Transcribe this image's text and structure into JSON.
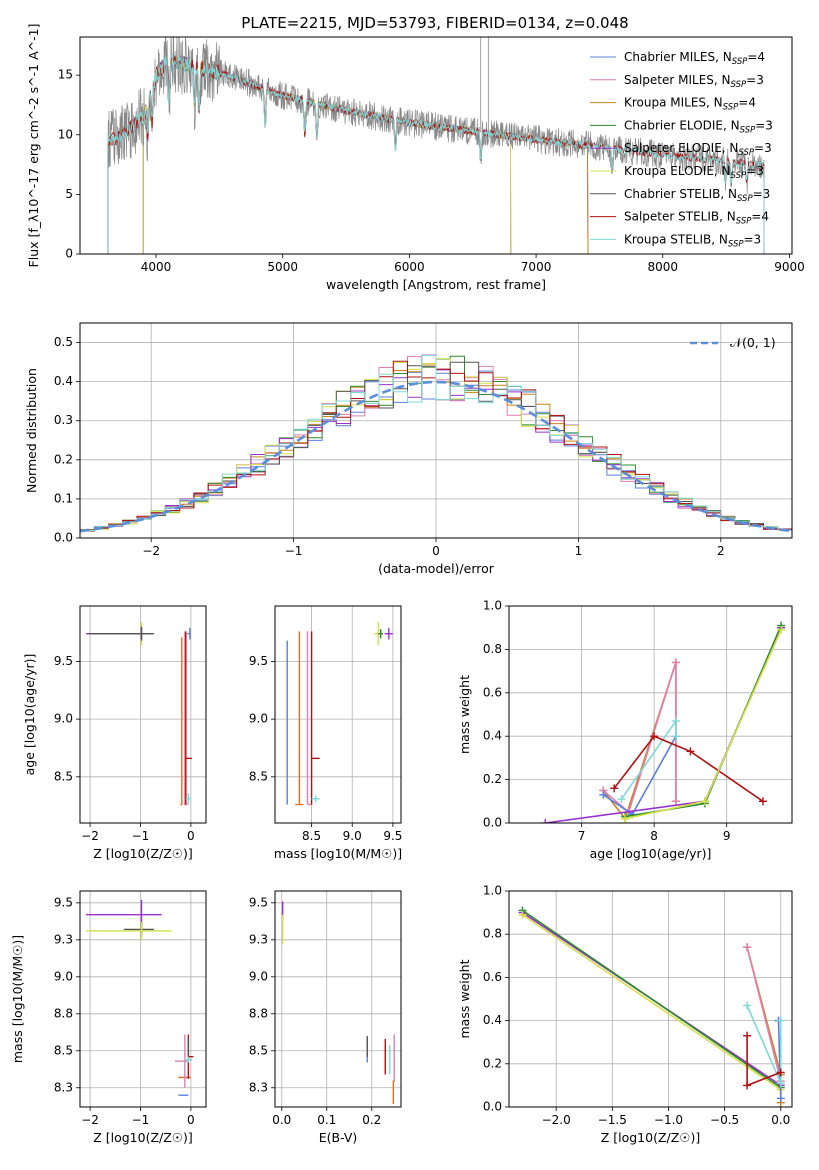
{
  "title": "PLATE=2215, MJD=53793, FIBERID=0134, z=0.048",
  "colors": {
    "Chabrier MILES": "#5b7fdb",
    "Salpeter MILES": "#e07fb0",
    "Kroupa MILES": "#c8821e",
    "Chabrier ELODIE": "#2e8b2e",
    "Salpeter ELODIE": "#9932cc",
    "Kroupa ELODIE": "#d4e04a",
    "Chabrier STELIB": "#555555",
    "Salpeter STELIB": "#b01010",
    "Kroupa STELIB": "#7fd8d8",
    "orange": "#e07020",
    "gaussian": "#5b8fdb"
  },
  "chart_data": [
    {
      "id": "spectrum",
      "type": "line",
      "xlabel": "wavelength [Angstrom, rest frame]",
      "ylabel": "Flux [f_λ10^-17 erg cm^-2 s^-1 A^-1]",
      "xlim": [
        3400,
        9020
      ],
      "ylim": [
        0,
        18.2
      ],
      "xticks": [
        4000,
        5000,
        6000,
        7000,
        8000,
        9000
      ],
      "yticks": [
        0,
        5,
        10,
        15
      ],
      "legend_placement": "top-right",
      "series": [
        {
          "name": "Chabrier MILES",
          "nssp": "4",
          "range": [
            3620,
            7410
          ]
        },
        {
          "name": "Salpeter MILES",
          "nssp": "3",
          "range": [
            3620,
            7410
          ]
        },
        {
          "name": "Kroupa MILES",
          "nssp": "4",
          "range": [
            3620,
            7410
          ]
        },
        {
          "name": "Chabrier ELODIE",
          "nssp": "3",
          "range": [
            3900,
            6800
          ]
        },
        {
          "name": "Salpeter ELODIE",
          "nssp": "3",
          "range": [
            3900,
            6800
          ]
        },
        {
          "name": "Kroupa ELODIE",
          "nssp": "3",
          "range": [
            3900,
            6800
          ]
        },
        {
          "name": "Chabrier STELIB",
          "nssp": "3",
          "range": [
            3620,
            8800
          ]
        },
        {
          "name": "Salpeter STELIB",
          "nssp": "4",
          "range": [
            3620,
            8800
          ]
        },
        {
          "name": "Kroupa STELIB",
          "nssp": "3",
          "range": [
            3620,
            8800
          ]
        }
      ],
      "continuum": {
        "x": [
          3620,
          3700,
          3800,
          3900,
          4000,
          4100,
          4200,
          4500,
          5000,
          5500,
          6000,
          6500,
          7000,
          7500,
          8000,
          8500,
          8800
        ],
        "y": [
          9.5,
          9.8,
          10.5,
          11.5,
          15.0,
          16.3,
          16.0,
          15.2,
          13.3,
          12.0,
          11.0,
          10.3,
          9.6,
          9.0,
          8.3,
          7.8,
          7.4
        ]
      },
      "absorption_lines": [
        3934,
        3969,
        4102,
        4304,
        4340,
        4861,
        5175,
        5270,
        5890,
        6563,
        7600,
        8498,
        8542,
        8662
      ]
    },
    {
      "id": "residuals",
      "type": "line",
      "xlabel": "(data-model)/error",
      "ylabel": "Normed distribution",
      "xlim": [
        -2.5,
        2.5
      ],
      "ylim": [
        0,
        0.55
      ],
      "xticks": [
        -2,
        -1,
        0,
        1,
        2
      ],
      "yticks": [
        0.0,
        0.1,
        0.2,
        0.3,
        0.4,
        0.5
      ],
      "legend_placement": "top-right",
      "gaussian_label": "𝒩(0, 1)",
      "series": [
        {
          "name": "Chabrier MILES"
        },
        {
          "name": "Salpeter MILES"
        },
        {
          "name": "Kroupa MILES"
        },
        {
          "name": "Chabrier ELODIE"
        },
        {
          "name": "Salpeter ELODIE"
        },
        {
          "name": "Kroupa ELODIE"
        },
        {
          "name": "Chabrier STELIB"
        },
        {
          "name": "Salpeter STELIB"
        },
        {
          "name": "Kroupa STELIB"
        }
      ]
    },
    {
      "id": "age-vs-Z",
      "type": "scatter",
      "xlabel": "Z [log10(Z/Z☉)]",
      "ylabel": "age [log10(age/yr)]",
      "xlim": [
        -2.2,
        0.3
      ],
      "ylim": [
        8.1,
        9.98
      ],
      "xticks": [
        -2,
        -1,
        0
      ],
      "yticks": [
        8.5,
        9.0,
        9.5
      ],
      "errorbars": [
        {
          "color": "Kroupa ELODIE",
          "x": -0.98,
          "y": 9.74,
          "xerr": [
            1.1,
            0.0
          ],
          "yerr": 0.1
        },
        {
          "color": "Salpeter ELODIE",
          "x": -0.98,
          "y": 9.74,
          "xerr": [
            1.1,
            0.2
          ],
          "yerr": 0.05
        },
        {
          "color": "Chabrier STELIB",
          "x": -0.98,
          "y": 9.74,
          "xerr": [
            1.05,
            0.25
          ],
          "yerr": 0.06
        },
        {
          "color": "Chabrier MILES",
          "x": -0.02,
          "y": 9.74,
          "xerr": [
            0.05,
            0.0
          ],
          "yerr": 0.05
        },
        {
          "color": "orange",
          "x": -0.18,
          "y": 8.26,
          "xerr": [
            0.03,
            0.0
          ],
          "yerr": [
            0,
            1.45
          ]
        },
        {
          "color": "Salpeter MILES",
          "x": -0.12,
          "y": 8.26,
          "xerr": [
            0.02,
            0.05
          ],
          "yerr": [
            0,
            1.5
          ]
        },
        {
          "color": "Salpeter STELIB",
          "x": -0.1,
          "y": 8.66,
          "xerr": [
            0.0,
            0.12
          ],
          "yerr": [
            0.4,
            1.1
          ]
        },
        {
          "color": "Kroupa STELIB",
          "x": -0.05,
          "y": 8.31,
          "xerr": [
            0.05,
            0.05
          ],
          "yerr": 0.05
        }
      ]
    },
    {
      "id": "age-vs-mass",
      "type": "scatter",
      "xlabel": "mass [log10(M/M☉)]",
      "ylabel": "",
      "xlim": [
        8.05,
        9.6
      ],
      "ylim": [
        8.1,
        9.98
      ],
      "xticks": [
        8.5,
        9.0,
        9.5
      ],
      "yticks": [
        8.5,
        9.0,
        9.5
      ],
      "errorbars": [
        {
          "color": "Chabrier MILES",
          "x": 8.2,
          "y": 8.26,
          "xerr": 0.0,
          "yerr": [
            0,
            1.42
          ]
        },
        {
          "color": "orange",
          "x": 8.35,
          "y": 8.26,
          "xerr": 0.05,
          "yerr": [
            0,
            1.5
          ]
        },
        {
          "color": "Salpeter MILES",
          "x": 8.45,
          "y": 8.26,
          "xerr": [
            0,
            0.05
          ],
          "yerr": [
            0,
            1.5
          ]
        },
        {
          "color": "Salpeter STELIB",
          "x": 8.5,
          "y": 8.66,
          "xerr": [
            0,
            0.1
          ],
          "yerr": [
            0.4,
            1.1
          ]
        },
        {
          "color": "Kroupa STELIB",
          "x": 8.55,
          "y": 8.31,
          "xerr": 0.05,
          "yerr": 0.03
        },
        {
          "color": "Kroupa ELODIE",
          "x": 9.32,
          "y": 9.74,
          "xerr": 0.05,
          "yerr": 0.1
        },
        {
          "color": "Salpeter ELODIE",
          "x": 9.45,
          "y": 9.74,
          "xerr": 0.05,
          "yerr": 0.05
        },
        {
          "color": "Chabrier ELODIE",
          "x": 9.35,
          "y": 9.74,
          "xerr": 0.03,
          "yerr": 0.04
        }
      ]
    },
    {
      "id": "mass-weight-vs-age",
      "type": "line",
      "xlabel": "age [log10(age/yr)]",
      "ylabel": "mass weight",
      "xlim": [
        6.0,
        9.9
      ],
      "ylim": [
        0.0,
        1.0
      ],
      "xticks": [
        7,
        8,
        9
      ],
      "yticks": [
        0.0,
        0.2,
        0.4,
        0.6,
        0.8,
        1.0
      ],
      "series": [
        {
          "name": "Kroupa MILES",
          "x": [
            7.3,
            7.6,
            8.3,
            8.3
          ],
          "y": [
            0.15,
            0.02,
            0.74,
            0.1
          ]
        },
        {
          "name": "Salpeter MILES",
          "x": [
            7.3,
            7.65,
            8.3,
            8.3
          ],
          "y": [
            0.15,
            0.05,
            0.74,
            0.1
          ]
        },
        {
          "name": "Chabrier MILES",
          "x": [
            7.3,
            7.7,
            8.3
          ],
          "y": [
            0.13,
            0.04,
            0.4
          ]
        },
        {
          "name": "Kroupa STELIB",
          "x": [
            7.55,
            8.3,
            8.3
          ],
          "y": [
            0.11,
            0.47,
            0.4
          ]
        },
        {
          "name": "Salpeter STELIB",
          "x": [
            7.45,
            8.0,
            8.5,
            9.5
          ],
          "y": [
            0.16,
            0.4,
            0.33,
            0.1
          ]
        },
        {
          "name": "Salpeter ELODIE",
          "x": [
            6.5,
            8.7,
            9.75
          ],
          "y": [
            0.0,
            0.1,
            0.9
          ]
        },
        {
          "name": "Chabrier ELODIE",
          "x": [
            7.6,
            8.7,
            9.75
          ],
          "y": [
            0.03,
            0.09,
            0.91
          ]
        },
        {
          "name": "Kroupa ELODIE",
          "x": [
            7.6,
            8.7,
            9.75
          ],
          "y": [
            0.02,
            0.1,
            0.89
          ]
        }
      ]
    },
    {
      "id": "mass-vs-Z",
      "type": "scatter",
      "xlabel": "Z [log10(Z/Z☉)]",
      "ylabel": "mass [log10(M/M☉)]",
      "xlim": [
        -2.2,
        0.3
      ],
      "ylim": [
        8.12,
        9.58
      ],
      "xticks": [
        -2,
        -1,
        0
      ],
      "yticks": [
        8.25,
        8.5,
        8.75,
        9.0,
        9.25,
        9.5
      ],
      "errorbars": [
        {
          "color": "Salpeter ELODIE",
          "x": -0.98,
          "y": 9.42,
          "xerr": [
            1.1,
            0.4
          ],
          "yerr": 0.1
        },
        {
          "color": "Chabrier STELIB",
          "x": -0.98,
          "y": 9.32,
          "xerr": [
            0.35,
            0.25
          ],
          "yerr": 0.05
        },
        {
          "color": "Kroupa ELODIE",
          "x": -0.98,
          "y": 9.31,
          "xerr": [
            1.1,
            0.6
          ],
          "yerr": 0.06
        },
        {
          "color": "Chabrier MILES",
          "x": -0.1,
          "y": 8.2,
          "xerr": [
            0.15,
            0.05
          ],
          "yerr": 0.0
        },
        {
          "color": "orange",
          "x": -0.1,
          "y": 8.32,
          "xerr": [
            0.15,
            0.1
          ],
          "yerr": 0.0
        },
        {
          "color": "Salpeter MILES",
          "x": -0.12,
          "y": 8.43,
          "xerr": [
            0.2,
            0.05
          ],
          "yerr": 0.18
        },
        {
          "color": "Salpeter STELIB",
          "x": -0.05,
          "y": 8.46,
          "xerr": [
            0.0,
            0.1
          ],
          "yerr": 0.15
        },
        {
          "color": "Chabrier STELIB",
          "x": -0.05,
          "y": 8.53,
          "xerr": 0.0,
          "yerr": 0.06
        },
        {
          "color": "Kroupa STELIB",
          "x": -0.05,
          "y": 8.44,
          "xerr": 0.08,
          "yerr": 0.02
        }
      ]
    },
    {
      "id": "mass-vs-ebv",
      "type": "scatter",
      "xlabel": "E(B-V)",
      "ylabel": "",
      "xlim": [
        -0.015,
        0.265
      ],
      "ylim": [
        8.12,
        9.58
      ],
      "xticks": [
        0.0,
        0.1,
        0.2
      ],
      "yticks": [
        8.25,
        8.5,
        8.75,
        9.0,
        9.25,
        9.5
      ],
      "errorbars": [
        {
          "color": "Salpeter ELODIE",
          "x": 0.002,
          "y": 9.45,
          "xerr": 0.0,
          "yerr": 0.06
        },
        {
          "color": "Kroupa ELODIE",
          "x": 0.002,
          "y": 9.32,
          "xerr": 0.0,
          "yerr": 0.1
        },
        {
          "color": "Chabrier MILES",
          "x": 0.19,
          "y": 8.5,
          "xerr": 0.0,
          "yerr": 0.08
        },
        {
          "color": "Chabrier STELIB",
          "x": 0.19,
          "y": 8.53,
          "xerr": 0.0,
          "yerr": 0.07
        },
        {
          "color": "Salpeter STELIB",
          "x": 0.23,
          "y": 8.46,
          "xerr": 0.0,
          "yerr": 0.12
        },
        {
          "color": "Kroupa STELIB",
          "x": 0.24,
          "y": 8.44,
          "xerr": 0.0,
          "yerr": 0.1
        },
        {
          "color": "orange",
          "x": 0.248,
          "y": 8.22,
          "xerr": 0.0,
          "yerr": 0.08
        },
        {
          "color": "Salpeter MILES",
          "x": 0.25,
          "y": 8.45,
          "xerr": 0.0,
          "yerr": 0.16
        }
      ]
    },
    {
      "id": "mass-weight-vs-Z",
      "type": "line",
      "xlabel": "Z [log10(Z/Z☉)]",
      "ylabel": "mass weight",
      "xlim": [
        -2.42,
        0.1
      ],
      "ylim": [
        0.0,
        1.0
      ],
      "xticks": [
        -2.0,
        -1.5,
        -1.0,
        -0.5,
        0.0
      ],
      "yticks": [
        0.0,
        0.2,
        0.4,
        0.6,
        0.8,
        1.0
      ],
      "series": [
        {
          "name": "Salpeter ELODIE",
          "x": [
            -2.3,
            0.0
          ],
          "y": [
            0.9,
            0.1
          ]
        },
        {
          "name": "Chabrier ELODIE",
          "x": [
            -2.3,
            0.0
          ],
          "y": [
            0.91,
            0.09
          ]
        },
        {
          "name": "Kroupa ELODIE",
          "x": [
            -2.3,
            0.0
          ],
          "y": [
            0.89,
            0.08
          ]
        },
        {
          "name": "Kroupa MILES",
          "x": [
            -0.3,
            0.0,
            0.0
          ],
          "y": [
            0.74,
            0.15,
            0.02
          ]
        },
        {
          "name": "Salpeter MILES",
          "x": [
            -0.3,
            0.0
          ],
          "y": [
            0.74,
            0.12
          ]
        },
        {
          "name": "Chabrier MILES",
          "x": [
            -0.02,
            0.0
          ],
          "y": [
            0.4,
            0.04
          ]
        },
        {
          "name": "Kroupa STELIB",
          "x": [
            -0.3,
            0.0,
            0.0
          ],
          "y": [
            0.47,
            0.11,
            0.4
          ]
        },
        {
          "name": "Salpeter STELIB",
          "x": [
            -0.3,
            -0.3,
            0.0
          ],
          "y": [
            0.33,
            0.1,
            0.16
          ]
        }
      ]
    }
  ]
}
